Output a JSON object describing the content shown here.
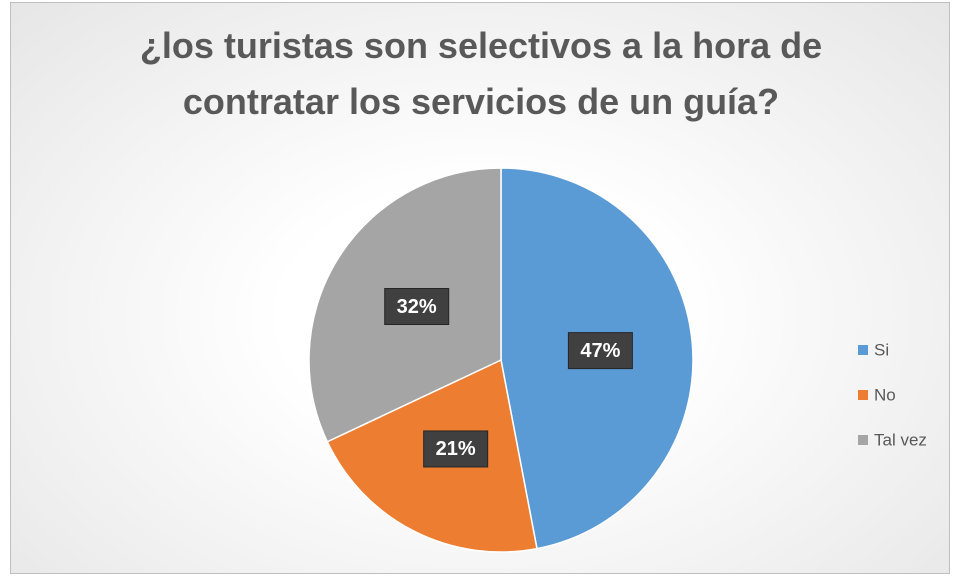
{
  "chart_data": {
    "type": "pie",
    "title": "¿los turistas son selectivos a la hora de contratar los servicios de un guía?",
    "categories": [
      "Si",
      "No",
      "Tal vez"
    ],
    "values": [
      47,
      21,
      32
    ],
    "value_labels": [
      "47%",
      "21%",
      "32%"
    ],
    "colors": [
      "#5b9bd5",
      "#ed7d31",
      "#a5a5a5"
    ],
    "legend": "right"
  }
}
